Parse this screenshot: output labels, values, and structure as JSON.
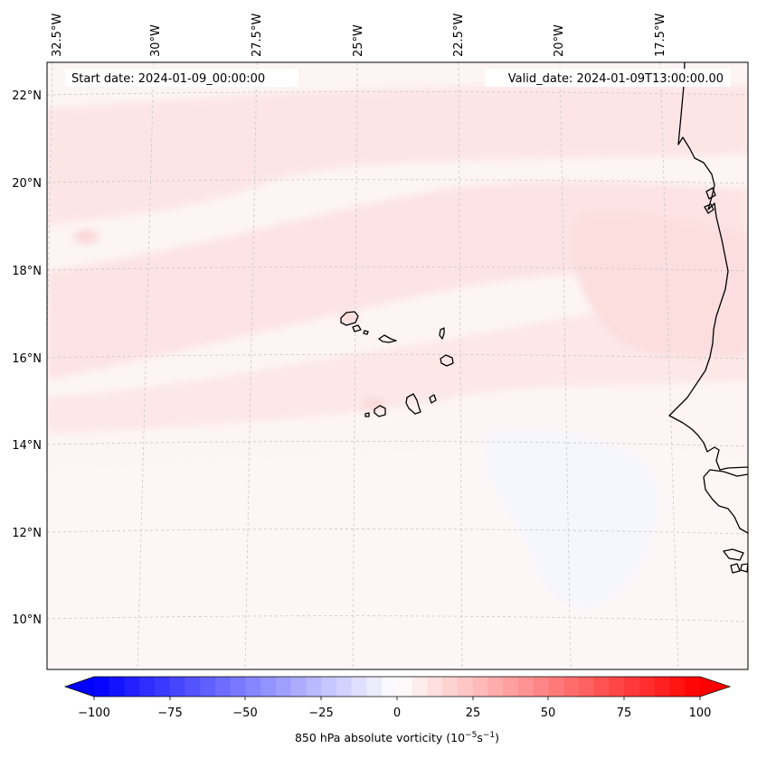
{
  "map": {
    "header": {
      "start_label": "Start date: 2024-01-09_00:00:00",
      "valid_label": "Valid_date: 2024-01-09T13:00:00.00"
    },
    "lon_labels": [
      "32.5°W",
      "30°W",
      "27.5°W",
      "25°W",
      "22.5°W",
      "20°W",
      "17.5°W"
    ],
    "lat_labels": [
      "22°N",
      "20°N",
      "18°N",
      "16°N",
      "14°N",
      "12°N",
      "10°N"
    ],
    "colorbar": {
      "ticks": [
        "−100",
        "−75",
        "−50",
        "−25",
        "0",
        "25",
        "50",
        "75",
        "100"
      ],
      "label_main": "850 hPa absolute vorticity (10",
      "label_exp1": "−5",
      "label_mid": "s",
      "label_exp2": "−1",
      "label_end": ")",
      "range": [
        -100,
        100
      ],
      "levels": 40,
      "colormap": "bwr",
      "color_min": "#0000ff",
      "color_mid": "#ffffff",
      "color_max": "#ff0000"
    },
    "field_color": "#fde9e9",
    "coastline_color": "#000000",
    "gridline_color": "#c8c8c8"
  }
}
